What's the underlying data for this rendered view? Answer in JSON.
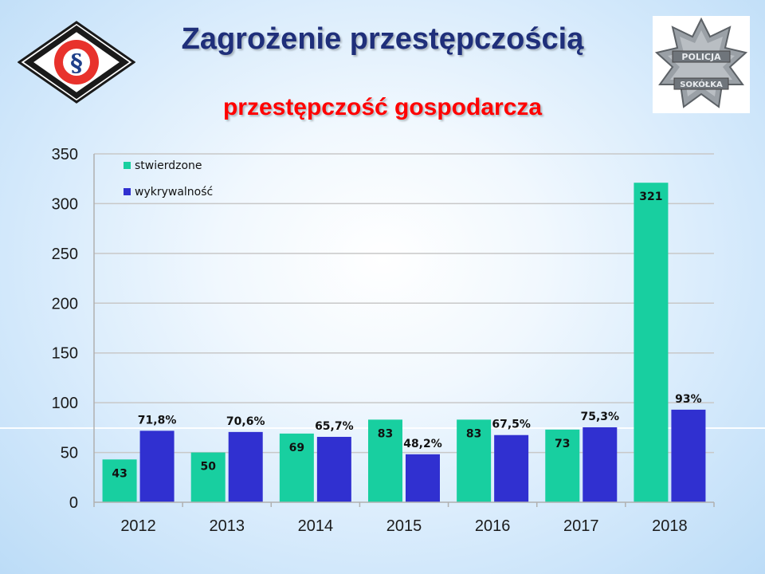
{
  "header": {
    "title": "Zagrożenie przestępczością",
    "subtitle": "przestępczość gospodarcza"
  },
  "logos": {
    "left": {
      "icon": "section-sign-diamond-logo",
      "glyph": "§"
    },
    "right": {
      "icon": "police-star-badge",
      "text_top": "POLICJA",
      "text_bottom": "SOKÓŁKA"
    }
  },
  "colors": {
    "title": "#1f2f7a",
    "subtitle": "#ff0000",
    "series_stwierdzone": "#18cfa0",
    "series_wykrywalnosc": "#3030d0"
  },
  "chart_data": {
    "type": "bar",
    "categories": [
      "2012",
      "2013",
      "2014",
      "2015",
      "2016",
      "2017",
      "2018"
    ],
    "series": [
      {
        "name": "stwierdzone",
        "values": [
          43,
          50,
          69,
          83,
          83,
          73,
          321
        ],
        "labels": [
          "43",
          "50",
          "69",
          "83",
          "83",
          "73",
          "321"
        ]
      },
      {
        "name": "wykrywalność",
        "values": [
          71.8,
          70.6,
          65.7,
          48.2,
          67.5,
          75.3,
          93
        ],
        "labels": [
          "71,8%",
          "70,6%",
          "65,7%",
          "48,2%",
          "67,5%",
          "75,3%",
          "93%"
        ]
      }
    ],
    "ylim": [
      0,
      350
    ],
    "yticks": [
      0,
      50,
      100,
      150,
      200,
      250,
      300,
      350
    ],
    "grid": true,
    "legend": "top-left"
  }
}
